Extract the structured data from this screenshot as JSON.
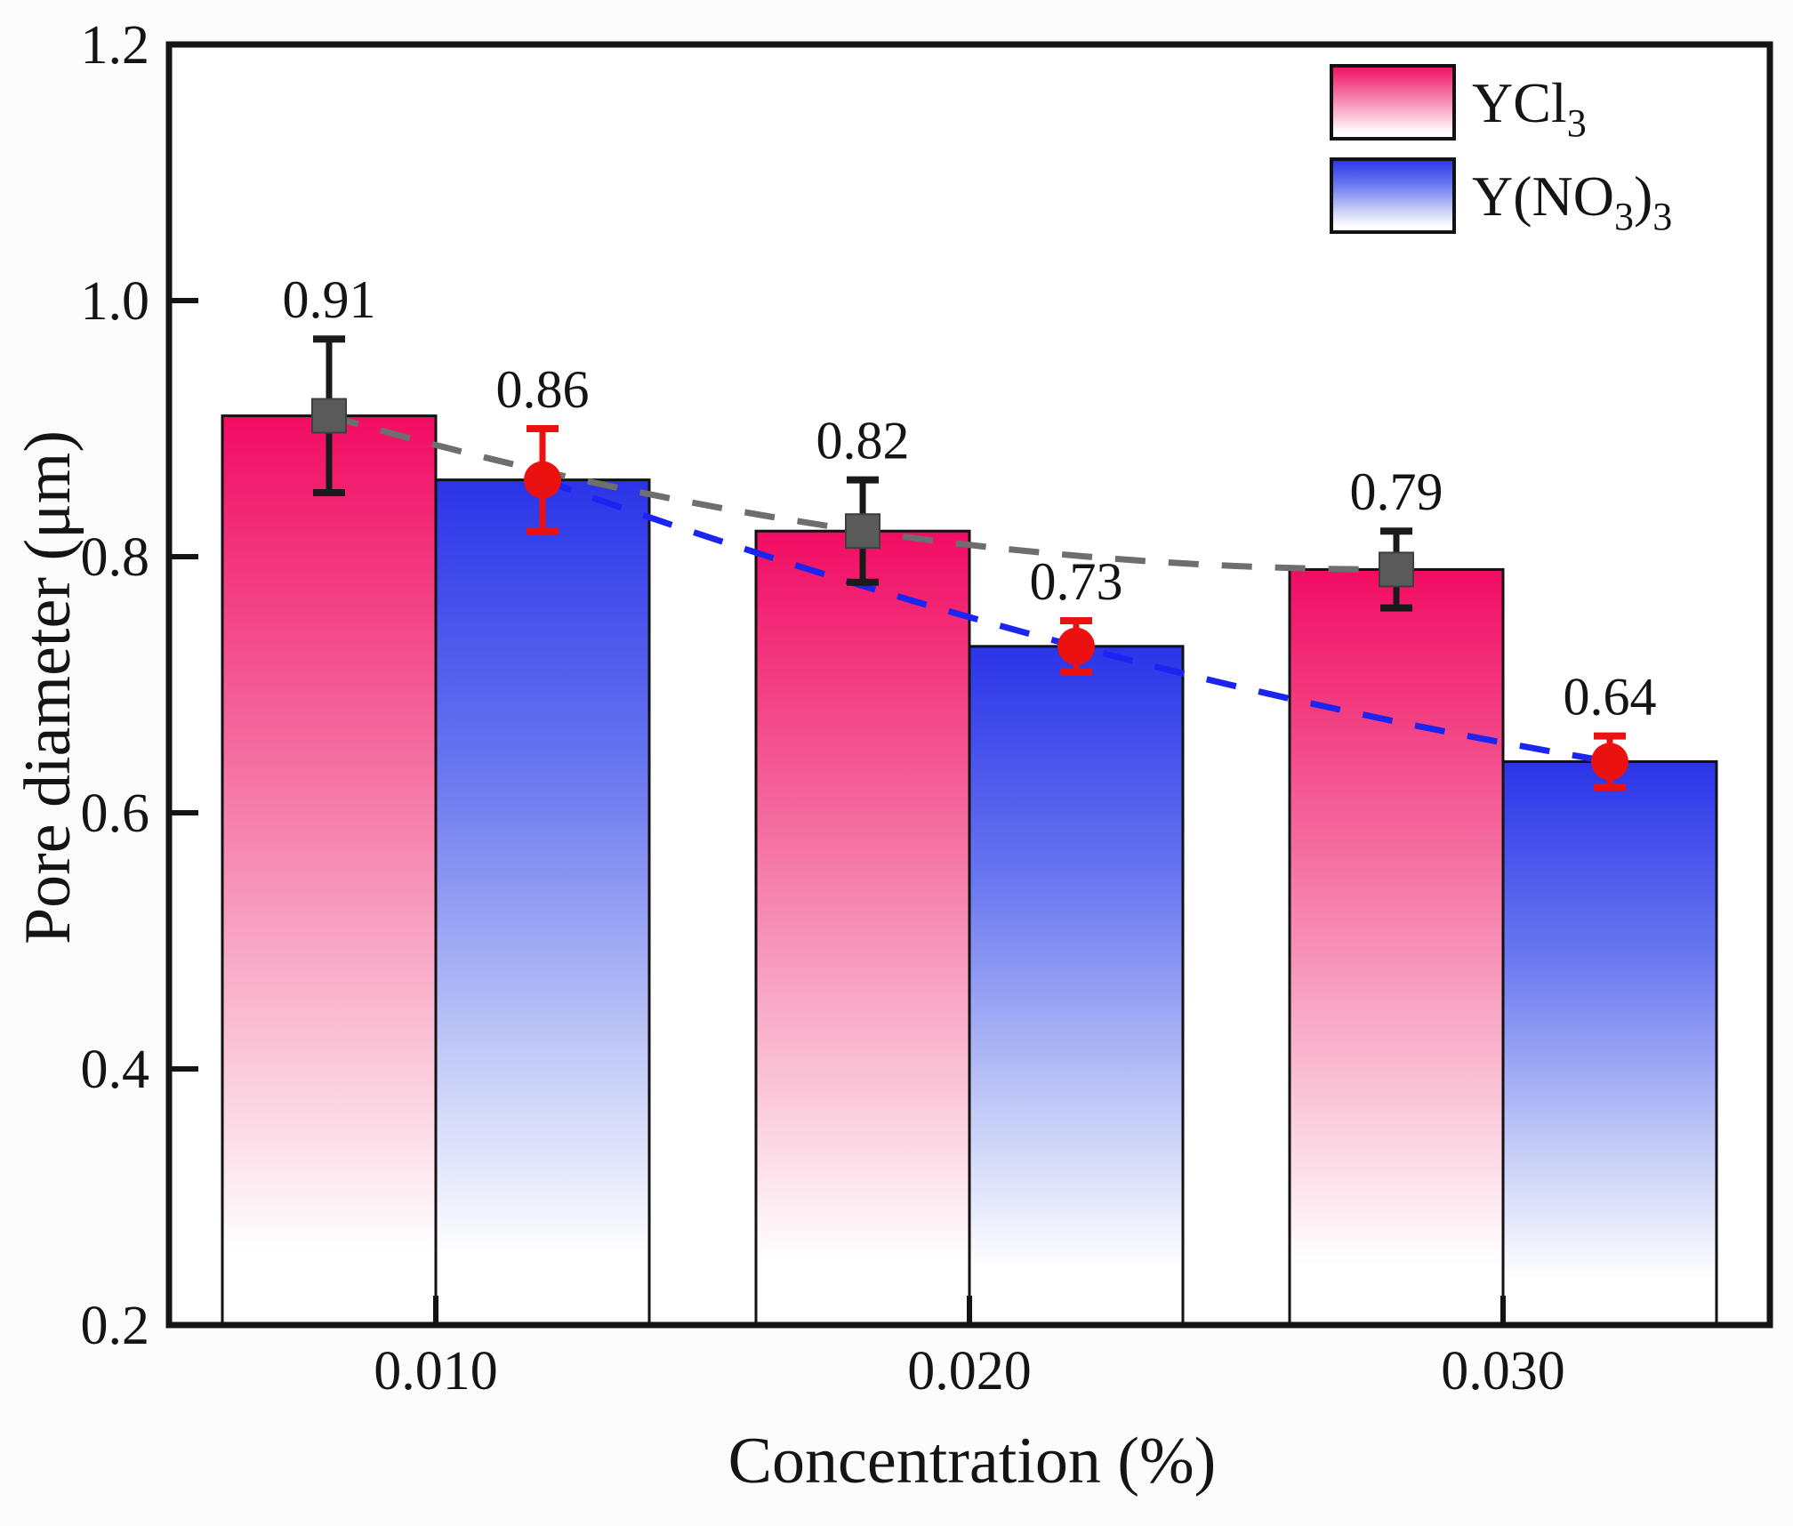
{
  "figure": {
    "background": "#fcfcfd",
    "plot_background": "#ffffff",
    "axis_color": "#141414"
  },
  "chart_data": {
    "type": "bar",
    "title": "",
    "xlabel": "Concentration (%)",
    "ylabel": "Pore diameter (μm)",
    "categories": [
      "0.010",
      "0.020",
      "0.030"
    ],
    "ylim": [
      0.2,
      1.2
    ],
    "yticks": [
      {
        "value": 0.2,
        "label": "0.2"
      },
      {
        "value": 0.4,
        "label": "0.4"
      },
      {
        "value": 0.6,
        "label": "0.6"
      },
      {
        "value": 0.8,
        "label": "0.8"
      },
      {
        "value": 1.0,
        "label": "1.0"
      },
      {
        "value": 1.2,
        "label": "1.2"
      }
    ],
    "grid": false,
    "legend_position": "top-right",
    "series": [
      {
        "name": "YCl3",
        "label_parts": [
          [
            "YCl",
            false
          ],
          [
            "3",
            true
          ]
        ],
        "values": [
          0.91,
          0.82,
          0.79
        ],
        "errors": [
          0.06,
          0.04,
          0.03
        ],
        "data_labels": [
          "0.91",
          "0.82",
          "0.79"
        ],
        "marker": "square",
        "marker_color": "#5a5a5a",
        "error_color": "#1a1a1a",
        "trend_color": "#6e6e6e",
        "trend_style": "dashed",
        "gradient": [
          "#F20C62",
          "#F4679C",
          "#FAC0D4",
          "#FFFFFF"
        ]
      },
      {
        "name": "Y(NO3)3",
        "label_parts": [
          [
            "Y(NO",
            false
          ],
          [
            "3",
            true
          ],
          [
            ")",
            false
          ],
          [
            "3",
            true
          ]
        ],
        "values": [
          0.86,
          0.73,
          0.64
        ],
        "errors": [
          0.04,
          0.02,
          0.02
        ],
        "data_labels": [
          "0.86",
          "0.73",
          "0.64"
        ],
        "marker": "circle",
        "marker_color": "#EC1111",
        "error_color": "#EC1111",
        "trend_color": "#1B24F0",
        "trend_style": "dashed",
        "gradient": [
          "#2A34E8",
          "#6B78F0",
          "#C2CAF7",
          "#FFFFFF"
        ]
      }
    ]
  }
}
